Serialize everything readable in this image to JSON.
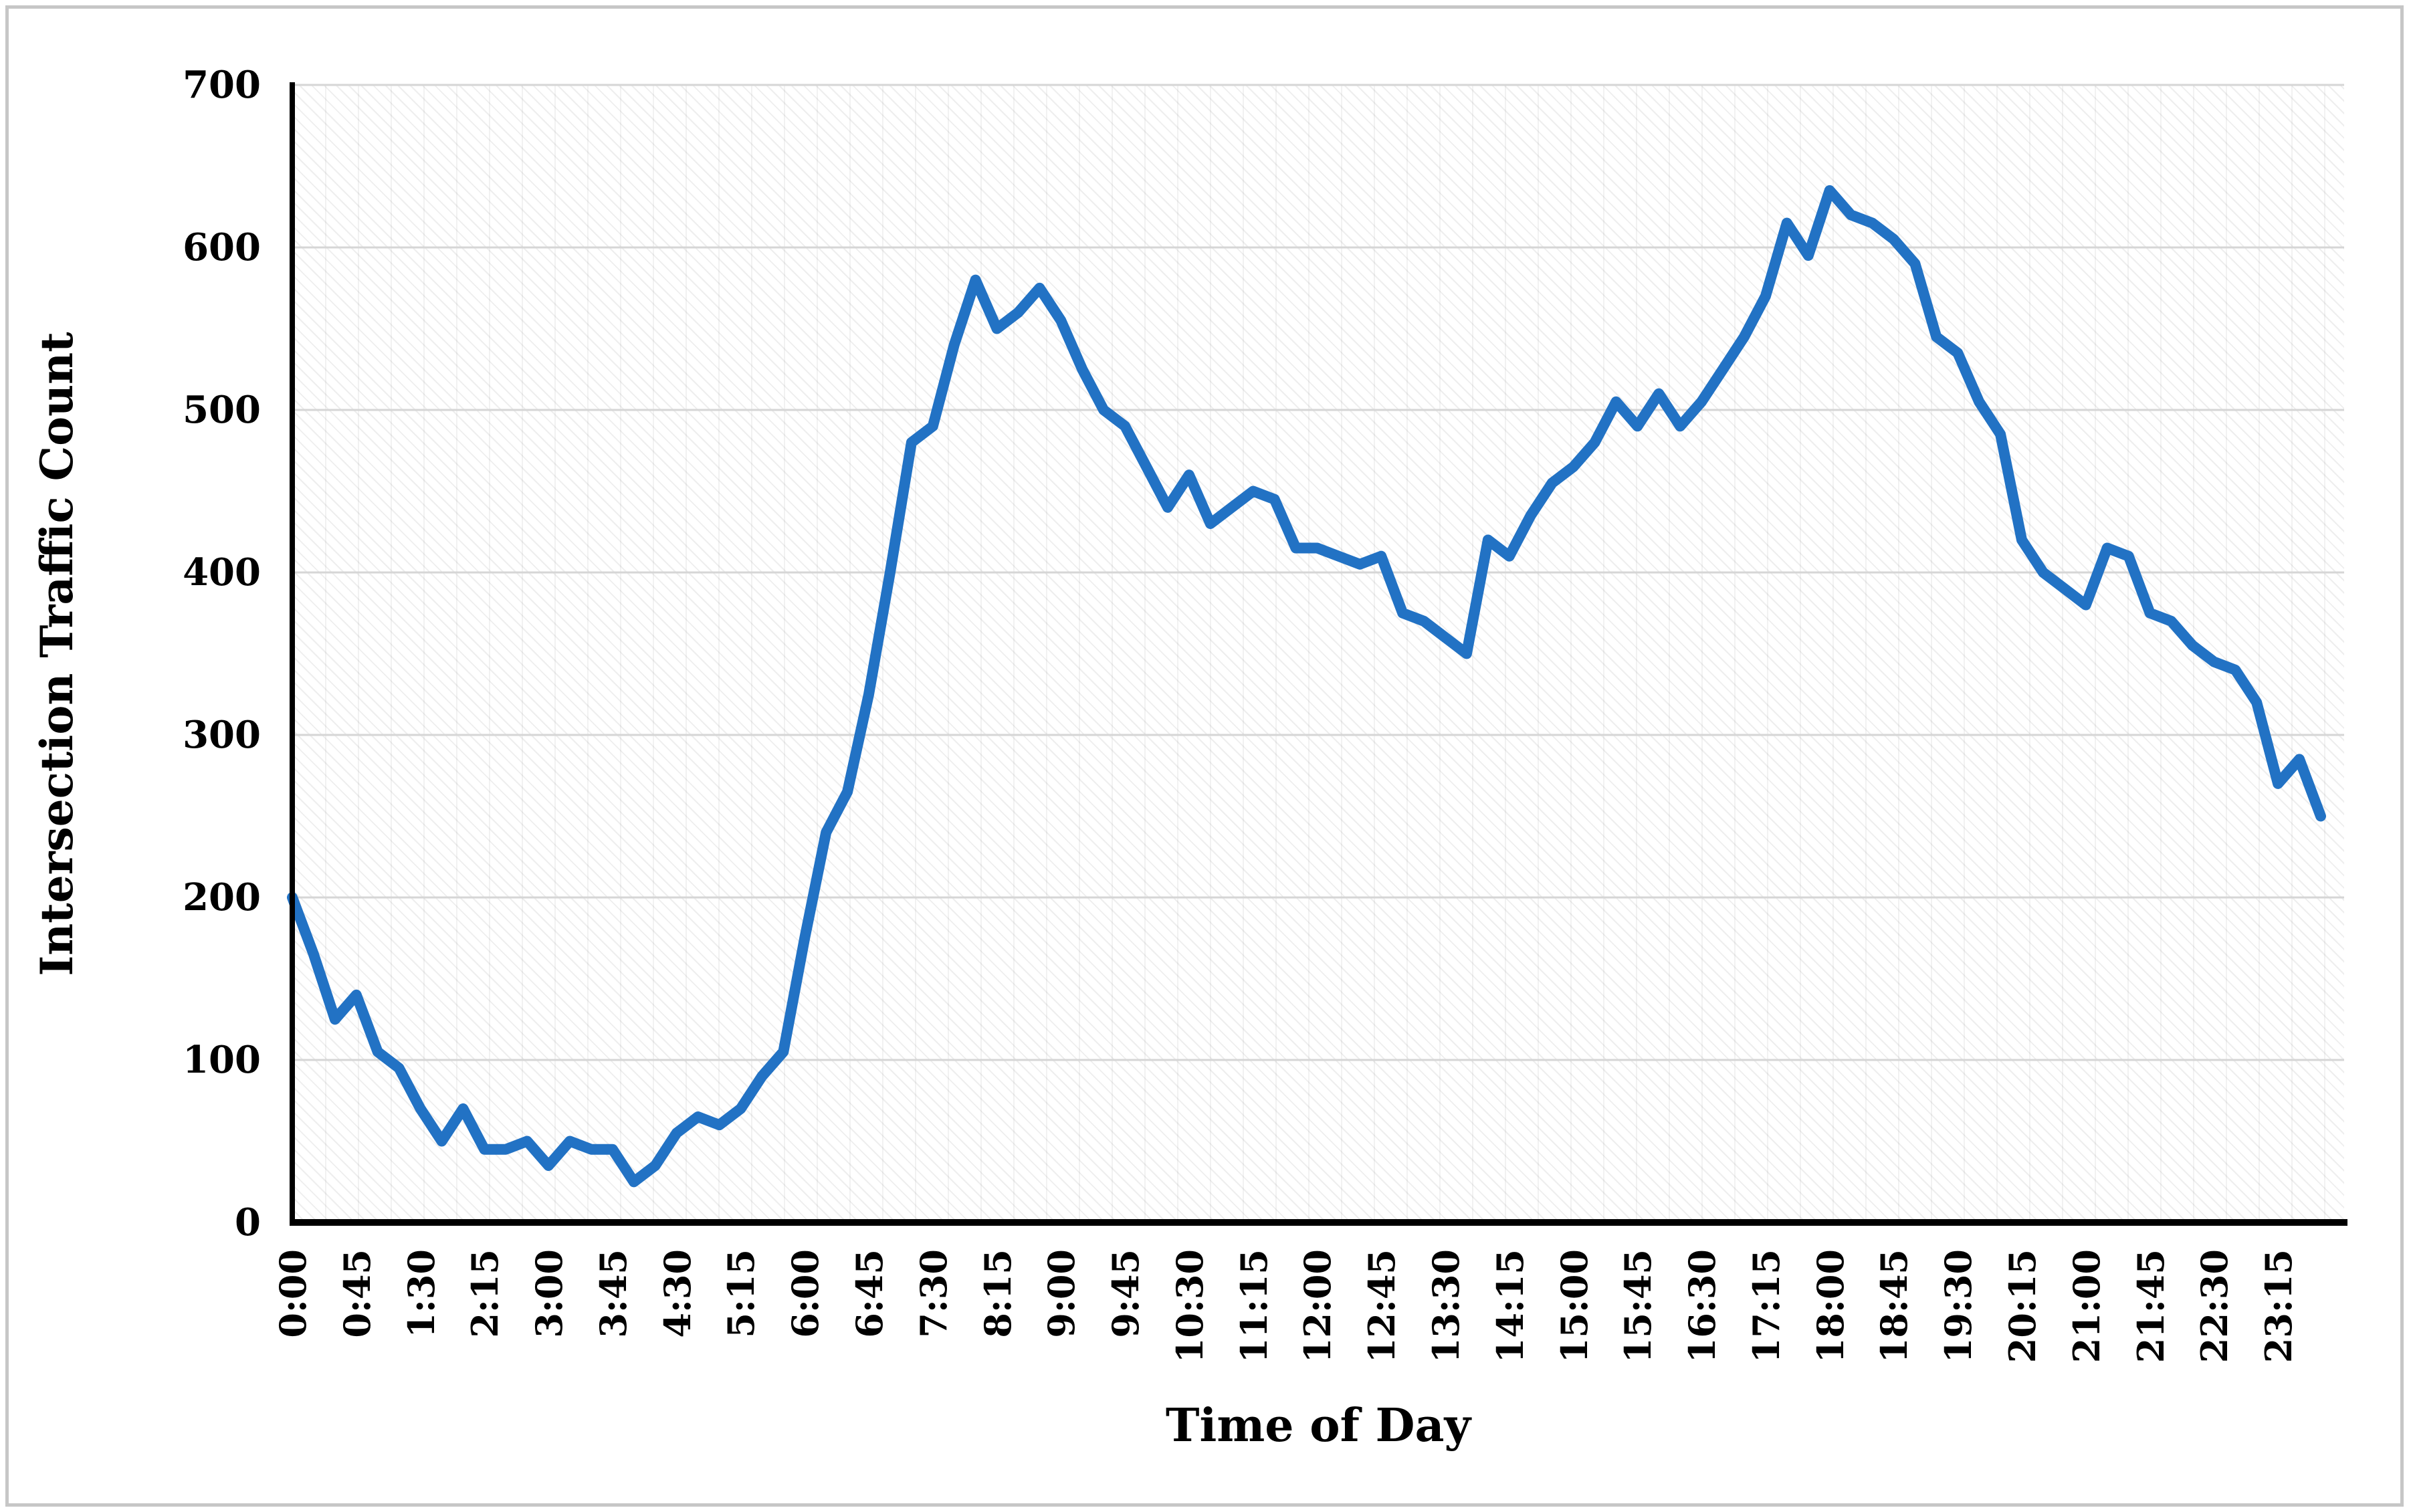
{
  "axis_titles": {
    "y": "Intersection Traffic Count",
    "x": "Time of Day"
  },
  "colors": {
    "line": "#2272C4",
    "gridline": "#D6D6D6",
    "axis": "#000000",
    "frame_border": "#C6C6C6",
    "text": "#000000"
  },
  "chart_data": {
    "type": "line",
    "title": "",
    "xlabel": "Time of Day",
    "ylabel": "Intersection Traffic Count",
    "ylim": [
      0,
      700
    ],
    "ytick_interval": 100,
    "ytick_labels": [
      "0",
      "100",
      "200",
      "300",
      "400",
      "500",
      "600",
      "700"
    ],
    "grid": "horizontal",
    "legend": "none",
    "x_label_every_n_points": 3,
    "x": [
      "0:00",
      "0:15",
      "0:30",
      "0:45",
      "1:00",
      "1:15",
      "1:30",
      "1:45",
      "2:00",
      "2:15",
      "2:30",
      "2:45",
      "3:00",
      "3:15",
      "3:30",
      "3:45",
      "4:00",
      "4:15",
      "4:30",
      "4:45",
      "5:00",
      "5:15",
      "5:30",
      "5:45",
      "6:00",
      "6:15",
      "6:30",
      "6:45",
      "7:00",
      "7:15",
      "7:30",
      "7:45",
      "8:00",
      "8:15",
      "8:30",
      "8:45",
      "9:00",
      "9:15",
      "9:30",
      "9:45",
      "10:00",
      "10:15",
      "10:30",
      "10:45",
      "11:00",
      "11:15",
      "11:30",
      "11:45",
      "12:00",
      "12:15",
      "12:30",
      "12:45",
      "13:00",
      "13:15",
      "13:30",
      "13:45",
      "14:00",
      "14:15",
      "14:30",
      "14:45",
      "15:00",
      "15:15",
      "15:30",
      "15:45",
      "16:00",
      "16:15",
      "16:30",
      "16:45",
      "17:00",
      "17:15",
      "17:30",
      "17:45",
      "18:00",
      "18:15",
      "18:30",
      "18:45",
      "19:00",
      "19:15",
      "19:30",
      "19:45",
      "20:00",
      "20:15",
      "20:30",
      "20:45",
      "21:00",
      "21:15",
      "21:30",
      "21:45",
      "22:00",
      "22:15",
      "22:30",
      "22:45",
      "23:00",
      "23:15",
      "23:30",
      "23:45"
    ],
    "values": [
      200,
      165,
      125,
      140,
      105,
      95,
      70,
      50,
      70,
      45,
      45,
      50,
      35,
      50,
      45,
      45,
      25,
      35,
      55,
      65,
      60,
      70,
      90,
      105,
      175,
      240,
      265,
      325,
      400,
      480,
      490,
      540,
      580,
      550,
      560,
      575,
      555,
      525,
      500,
      490,
      465,
      440,
      460,
      430,
      440,
      450,
      445,
      415,
      415,
      410,
      405,
      410,
      375,
      370,
      360,
      350,
      420,
      410,
      435,
      455,
      465,
      480,
      505,
      490,
      510,
      490,
      505,
      525,
      545,
      570,
      615,
      595,
      635,
      620,
      615,
      605,
      590,
      545,
      535,
      505,
      485,
      420,
      400,
      390,
      380,
      415,
      410,
      375,
      370,
      355,
      345,
      340,
      320,
      270,
      285,
      250
    ],
    "x_tick_labels": [
      "0:00",
      "0:45",
      "1:30",
      "2:15",
      "3:00",
      "3:45",
      "4:30",
      "5:15",
      "6:00",
      "6:45",
      "7:30",
      "8:15",
      "9:00",
      "9:45",
      "10:30",
      "11:15",
      "12:00",
      "12:45",
      "13:30",
      "14:15",
      "15:00",
      "15:45",
      "16:30",
      "17:15",
      "18:00",
      "18:45",
      "19:30",
      "20:15",
      "21:00",
      "21:45",
      "22:30",
      "23:15"
    ]
  }
}
